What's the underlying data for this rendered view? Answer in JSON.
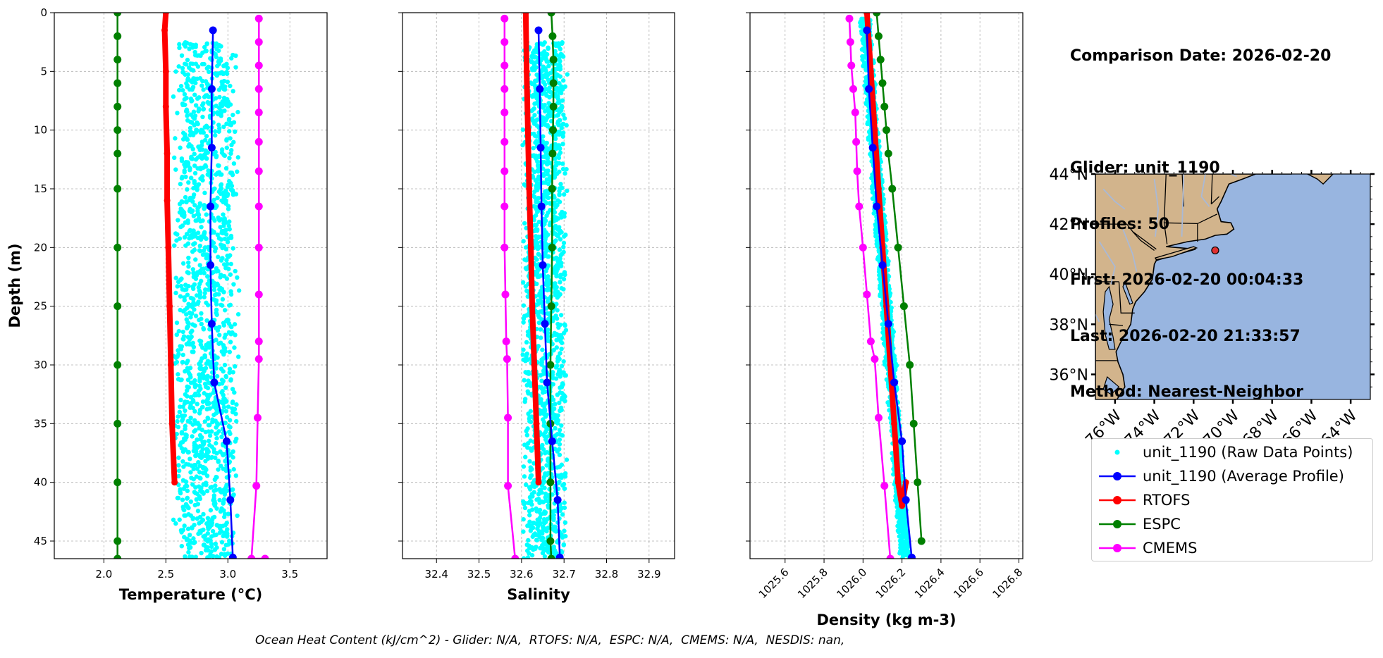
{
  "info": {
    "lines": [
      "Comparison Date: 2026-02-20",
      "",
      "Glider: unit_1190",
      "Profiles: 50",
      "First: 2026-02-20 00:04:33",
      "Last: 2026-02-20 21:33:57",
      "Method: Nearest-Neighbor"
    ]
  },
  "footer": "Ocean Heat Content (kJ/cm^2) - Glider: N/A,  RTOFS: N/A,  ESPC: N/A,  CMEMS: N/A,  NESDIS: nan,",
  "legend": [
    {
      "label": "unit_1190 (Raw Data Points)",
      "color": "#00ffff",
      "style": "dot"
    },
    {
      "label": "unit_1190 (Average Profile)",
      "color": "#0000ff",
      "style": "line-marker"
    },
    {
      "label": "RTOFS",
      "color": "#ff0000",
      "style": "line-marker"
    },
    {
      "label": "ESPC",
      "color": "#008000",
      "style": "line-marker"
    },
    {
      "label": "CMEMS",
      "color": "#ff00ff",
      "style": "line-marker"
    }
  ],
  "map": {
    "lat_labels": [
      "44°N",
      "42°N",
      "40°N",
      "38°N",
      "36°N"
    ],
    "lon_labels": [
      "76°W",
      "74°W",
      "72°W",
      "70°W",
      "68°W",
      "66°W",
      "64°W"
    ],
    "land_color": "#d2b48c",
    "ocean_color": "#98b5e0",
    "glider_location": {
      "lat": 40.95,
      "lon": -70.9
    }
  },
  "chart_data": [
    {
      "type": "line",
      "xlabel": "Temperature (°C)",
      "ylabel": "Depth (m)",
      "xlim": [
        1.6,
        3.8
      ],
      "ylim": [
        46.5,
        0
      ],
      "xticks": [
        2.0,
        2.5,
        3.0,
        3.5
      ],
      "xtick_labels": [
        "2.0",
        "2.5",
        "3.0",
        "3.5"
      ],
      "yticks": [
        0,
        5,
        10,
        15,
        20,
        25,
        30,
        35,
        40,
        45
      ],
      "grid": true,
      "raw_points": {
        "x_range": [
          2.55,
          3.1
        ],
        "y_range": [
          2.5,
          46.5
        ]
      },
      "series": [
        {
          "name": "RTOFS",
          "color": "#ff0000",
          "width": 8,
          "x": [
            2.5,
            2.49,
            2.5,
            2.5,
            2.51,
            2.51,
            2.52,
            2.53,
            2.54,
            2.55,
            2.57
          ],
          "y": [
            0,
            1.5,
            5,
            8,
            12,
            16,
            20,
            25,
            30,
            35,
            40
          ]
        },
        {
          "name": "ESPC",
          "color": "#008000",
          "width": 2.5,
          "x": [
            2.11,
            2.11,
            2.11,
            2.11,
            2.11,
            2.11,
            2.11,
            2.11,
            2.11,
            2.11,
            2.11,
            2.11,
            2.11,
            2.11,
            2.11
          ],
          "y": [
            0,
            2,
            4,
            6,
            8,
            10,
            12,
            15,
            20,
            25,
            30,
            35,
            40,
            45,
            46.5
          ]
        },
        {
          "name": "CMEMS",
          "color": "#ff00ff",
          "width": 2.5,
          "x": [
            3.25,
            3.25,
            3.25,
            3.25,
            3.25,
            3.25,
            3.25,
            3.25,
            3.25,
            3.25,
            3.25,
            3.25,
            3.24,
            3.23,
            3.19,
            3.3
          ],
          "y": [
            0.5,
            2.5,
            4.5,
            6.5,
            8.5,
            11,
            13.5,
            16.5,
            20,
            24,
            28,
            29.5,
            34.5,
            40.3,
            46.5,
            46.5
          ]
        },
        {
          "name": "unit_1190 (Average Profile)",
          "color": "#0000ff",
          "width": 2.5,
          "x": [
            2.88,
            2.87,
            2.87,
            2.86,
            2.86,
            2.87,
            2.89,
            2.99,
            3.02,
            3.04
          ],
          "y": [
            1.5,
            6.5,
            11.5,
            16.5,
            21.5,
            26.5,
            31.5,
            36.5,
            41.5,
            46.4
          ]
        }
      ]
    },
    {
      "type": "line",
      "xlabel": "Salinity",
      "xlim": [
        32.32,
        32.96
      ],
      "ylim": [
        46.5,
        0
      ],
      "xticks": [
        32.4,
        32.5,
        32.6,
        32.7,
        32.8,
        32.9
      ],
      "xtick_labels": [
        "32.4",
        "32.5",
        "32.6",
        "32.7",
        "32.8",
        "32.9"
      ],
      "yticks": [
        0,
        5,
        10,
        15,
        20,
        25,
        30,
        35,
        40,
        45
      ],
      "grid": true,
      "raw_points": {
        "x_range": [
          32.6,
          32.71
        ],
        "y_range": [
          2.5,
          46.5
        ]
      },
      "series": [
        {
          "name": "RTOFS",
          "color": "#ff0000",
          "width": 8,
          "x": [
            32.61,
            32.612,
            32.615,
            32.618,
            32.622,
            32.625,
            32.63,
            32.635,
            32.64
          ],
          "y": [
            0,
            5,
            10,
            15,
            20,
            25,
            30,
            35,
            40
          ]
        },
        {
          "name": "ESPC",
          "color": "#008000",
          "width": 2.5,
          "x": [
            32.67,
            32.673,
            32.675,
            32.675,
            32.675,
            32.674,
            32.673,
            32.672,
            32.672,
            32.67,
            32.668,
            32.668,
            32.668,
            32.668,
            32.67
          ],
          "y": [
            0,
            2,
            4,
            6,
            8,
            10,
            12,
            15,
            20,
            25,
            30,
            35,
            40,
            45,
            46.5
          ]
        },
        {
          "name": "CMEMS",
          "color": "#ff00ff",
          "width": 2.5,
          "x": [
            32.56,
            32.56,
            32.56,
            32.56,
            32.56,
            32.56,
            32.56,
            32.56,
            32.56,
            32.562,
            32.564,
            32.566,
            32.568,
            32.568,
            32.585
          ],
          "y": [
            0.5,
            2.5,
            4.5,
            6.5,
            8.5,
            11,
            13.5,
            16.5,
            20,
            24,
            28,
            29.5,
            34.5,
            40.3,
            46.5
          ]
        },
        {
          "name": "unit_1190 (Average Profile)",
          "color": "#0000ff",
          "width": 2.5,
          "x": [
            32.64,
            32.643,
            32.645,
            32.647,
            32.65,
            32.655,
            32.66,
            32.672,
            32.685,
            32.69
          ],
          "y": [
            1.5,
            6.5,
            11.5,
            16.5,
            21.5,
            26.5,
            31.5,
            36.5,
            41.5,
            46.4
          ]
        }
      ]
    },
    {
      "type": "line",
      "xlabel": "Density (kg m-3)",
      "xlim": [
        1025.42,
        1026.82
      ],
      "ylim": [
        46.5,
        0
      ],
      "xticks": [
        1025.6,
        1025.8,
        1026.0,
        1026.2,
        1026.4,
        1026.6,
        1026.8
      ],
      "xtick_labels": [
        "1025.6",
        "1025.8",
        "1026.0",
        "1026.2",
        "1026.4",
        "1026.6",
        "1026.8"
      ],
      "yticks": [
        0,
        5,
        10,
        15,
        20,
        25,
        30,
        35,
        40,
        45
      ],
      "grid": true,
      "raw_points": {
        "x_range": [
          1025.99,
          1026.24
        ],
        "y_range": [
          0.5,
          46.5
        ]
      },
      "series": [
        {
          "name": "RTOFS",
          "color": "#ff0000",
          "width": 8,
          "x": [
            1026.02,
            1026.04,
            1026.06,
            1026.08,
            1026.1,
            1026.12,
            1026.14,
            1026.16,
            1026.18,
            1026.2,
            1026.22
          ],
          "y": [
            0,
            5,
            10,
            15,
            20,
            25,
            30,
            35,
            40,
            42,
            40
          ]
        },
        {
          "name": "ESPC",
          "color": "#008000",
          "width": 2.5,
          "x": [
            1026.07,
            1026.08,
            1026.09,
            1026.1,
            1026.11,
            1026.12,
            1026.13,
            1026.15,
            1026.18,
            1026.21,
            1026.24,
            1026.26,
            1026.28,
            1026.3
          ],
          "y": [
            0,
            2,
            4,
            6,
            8,
            10,
            12,
            15,
            20,
            25,
            30,
            35,
            40,
            45
          ]
        },
        {
          "name": "CMEMS",
          "color": "#ff00ff",
          "width": 2.5,
          "x": [
            1025.93,
            1025.935,
            1025.94,
            1025.95,
            1025.96,
            1025.965,
            1025.97,
            1025.98,
            1026.0,
            1026.02,
            1026.04,
            1026.06,
            1026.08,
            1026.11,
            1026.14
          ],
          "y": [
            0.5,
            2.5,
            4.5,
            6.5,
            8.5,
            11,
            13.5,
            16.5,
            20,
            24,
            28,
            29.5,
            34.5,
            40.3,
            46.5
          ]
        },
        {
          "name": "unit_1190 (Average Profile)",
          "color": "#0000ff",
          "width": 2.5,
          "x": [
            1026.02,
            1026.03,
            1026.05,
            1026.07,
            1026.1,
            1026.13,
            1026.16,
            1026.2,
            1026.22,
            1026.25
          ],
          "y": [
            1.5,
            6.5,
            11.5,
            16.5,
            21.5,
            26.5,
            31.5,
            36.5,
            41.5,
            46.4
          ]
        }
      ]
    }
  ]
}
